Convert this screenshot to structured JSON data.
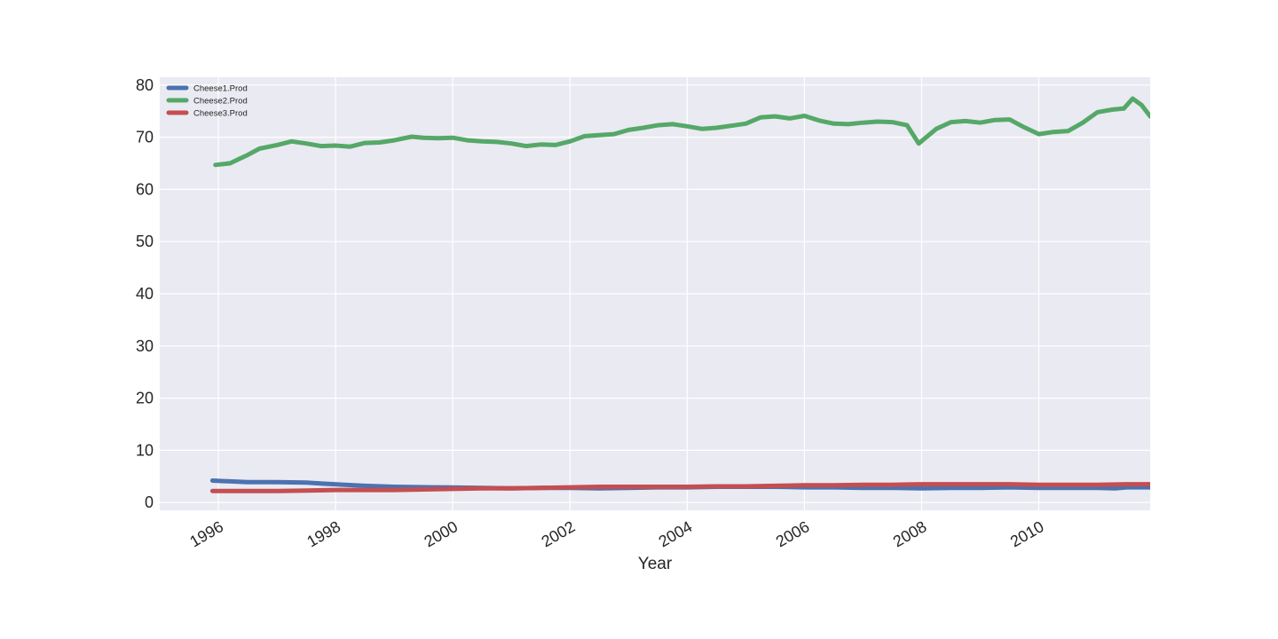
{
  "chart_data": {
    "type": "line",
    "title": "",
    "xlabel": "Year",
    "ylabel": "",
    "xlim": [
      1995.0,
      2011.9
    ],
    "ylim": [
      -1.5,
      81.5
    ],
    "xticks": [
      1996,
      1998,
      2000,
      2002,
      2004,
      2006,
      2008,
      2010
    ],
    "yticks": [
      0,
      10,
      20,
      30,
      40,
      50,
      60,
      70,
      80
    ],
    "grid": true,
    "legend_position": "top-left",
    "background_color": "#EAEAF2",
    "series": [
      {
        "name": "Cheese1.Prod",
        "color": "#4C72B0",
        "x": [
          1995.9,
          1996.5,
          1997.0,
          1997.5,
          1997.8,
          1998.5,
          1999.0,
          1999.7,
          2000.5,
          2001.0,
          2001.5,
          2002.0,
          2002.5,
          2003.0,
          2003.5,
          2004.0,
          2004.5,
          2005.0,
          2005.5,
          2006.0,
          2006.5,
          2007.0,
          2007.5,
          2008.0,
          2008.5,
          2009.0,
          2009.5,
          2010.0,
          2010.5,
          2011.0,
          2011.3,
          2011.5,
          2011.9
        ],
        "y": [
          4.2,
          3.9,
          3.9,
          3.8,
          3.6,
          3.2,
          3.0,
          2.9,
          2.8,
          2.7,
          2.8,
          2.8,
          2.7,
          2.8,
          2.9,
          2.9,
          3.0,
          3.0,
          3.0,
          2.9,
          2.9,
          2.8,
          2.8,
          2.7,
          2.8,
          2.8,
          2.9,
          2.8,
          2.8,
          2.8,
          2.7,
          2.9,
          2.9
        ]
      },
      {
        "name": "Cheese2.Prod",
        "color": "#55A868",
        "x": [
          1995.95,
          1996.2,
          1996.35,
          1996.5,
          1996.7,
          1997.0,
          1997.25,
          1997.5,
          1997.75,
          1998.0,
          1998.25,
          1998.5,
          1998.75,
          1999.0,
          1999.3,
          1999.5,
          1999.75,
          2000.0,
          2000.25,
          2000.5,
          2000.75,
          2001.0,
          2001.25,
          2001.5,
          2001.75,
          2002.0,
          2002.25,
          2002.5,
          2002.75,
          2003.0,
          2003.25,
          2003.5,
          2003.75,
          2004.0,
          2004.25,
          2004.5,
          2004.75,
          2005.0,
          2005.25,
          2005.5,
          2005.75,
          2006.0,
          2006.25,
          2006.5,
          2006.75,
          2007.0,
          2007.25,
          2007.5,
          2007.75,
          2007.95,
          2008.25,
          2008.5,
          2008.75,
          2009.0,
          2009.25,
          2009.5,
          2009.75,
          2010.0,
          2010.25,
          2010.5,
          2010.75,
          2011.0,
          2011.25,
          2011.45,
          2011.6,
          2011.75,
          2011.9
        ],
        "y": [
          64.7,
          65.0,
          65.8,
          66.6,
          67.8,
          68.5,
          69.2,
          68.8,
          68.3,
          68.4,
          68.2,
          68.9,
          69.0,
          69.4,
          70.1,
          69.9,
          69.8,
          69.9,
          69.4,
          69.2,
          69.1,
          68.8,
          68.3,
          68.6,
          68.5,
          69.2,
          70.2,
          70.4,
          70.6,
          71.4,
          71.8,
          72.3,
          72.5,
          72.1,
          71.6,
          71.8,
          72.2,
          72.6,
          73.8,
          74.0,
          73.6,
          74.1,
          73.2,
          72.6,
          72.5,
          72.8,
          73.0,
          72.9,
          72.3,
          68.8,
          71.6,
          72.9,
          73.1,
          72.8,
          73.3,
          73.4,
          71.9,
          70.6,
          71.0,
          71.2,
          72.8,
          74.8,
          75.3,
          75.5,
          77.4,
          76.2,
          74.0
        ]
      },
      {
        "name": "Cheese3.Prod",
        "color": "#C44E52",
        "x": [
          1995.9,
          1996.5,
          1997.0,
          1997.5,
          1998.0,
          1998.5,
          1999.0,
          1999.5,
          2000.0,
          2000.5,
          2001.0,
          2001.5,
          2002.0,
          2002.5,
          2003.0,
          2003.5,
          2004.0,
          2004.5,
          2005.0,
          2005.5,
          2006.0,
          2006.5,
          2007.0,
          2007.5,
          2008.0,
          2008.5,
          2009.0,
          2009.5,
          2010.0,
          2010.5,
          2011.0,
          2011.5,
          2011.9
        ],
        "y": [
          2.2,
          2.2,
          2.2,
          2.3,
          2.4,
          2.4,
          2.4,
          2.5,
          2.6,
          2.7,
          2.7,
          2.8,
          2.9,
          3.0,
          3.0,
          3.0,
          3.0,
          3.1,
          3.1,
          3.2,
          3.3,
          3.3,
          3.4,
          3.4,
          3.5,
          3.5,
          3.5,
          3.5,
          3.4,
          3.4,
          3.4,
          3.5,
          3.5
        ]
      }
    ]
  }
}
